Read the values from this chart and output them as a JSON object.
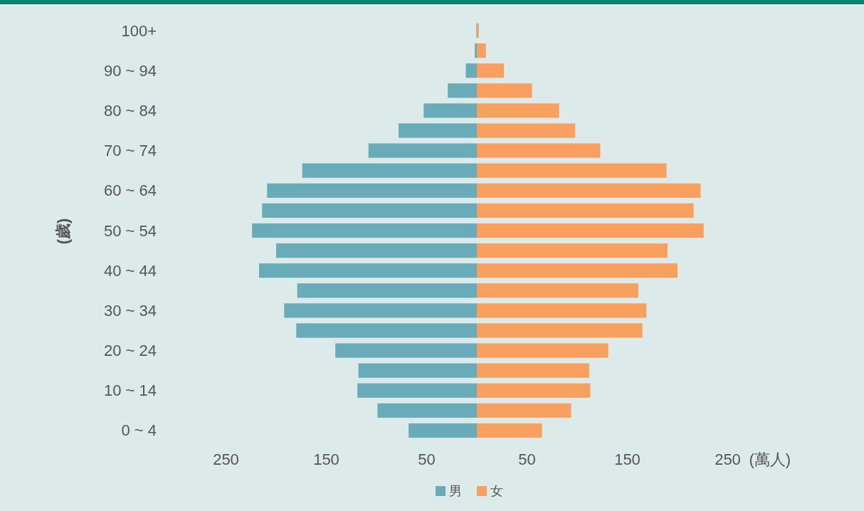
{
  "chart_data": {
    "type": "bar",
    "orientation": "horizontal",
    "stacked": true,
    "categories": [
      "100+",
      null,
      "90 ~ 94",
      null,
      "80 ~ 84",
      null,
      "70 ~ 74",
      null,
      "60 ~ 64",
      null,
      "50 ~ 54",
      null,
      "40 ~ 44",
      null,
      "30 ~ 34",
      null,
      "20 ~ 24",
      null,
      "10 ~ 14",
      null,
      "0 ~ 4"
    ],
    "series": [
      {
        "name": "男",
        "color": "#6aabba",
        "values": [
          -0.5,
          -2,
          -11,
          -29,
          -53,
          -78,
          -108,
          -174,
          -209,
          -214,
          -224,
          -200,
          -217,
          -179,
          -192,
          -180,
          -141,
          -118,
          -119,
          -99,
          -68
        ]
      },
      {
        "name": "女",
        "color": "#f8a060",
        "values": [
          2,
          9,
          27,
          55,
          82,
          98,
          123,
          189,
          223,
          216,
          226,
          190,
          200,
          161,
          169,
          165,
          131,
          112,
          113,
          94,
          65
        ]
      }
    ],
    "xlim": [
      -250,
      250
    ],
    "xticks": [
      {
        "value": -250,
        "label": "250"
      },
      {
        "value": -150,
        "label": "150"
      },
      {
        "value": -50,
        "label": "50"
      },
      50,
      150,
      250
    ],
    "xlabel": "(萬人)",
    "ylabel": "(歲)",
    "legend": "bottom"
  }
}
